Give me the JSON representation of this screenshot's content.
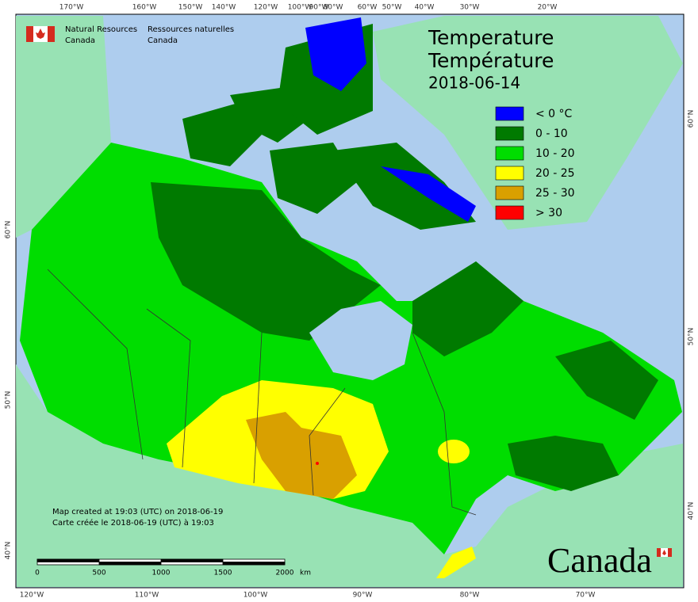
{
  "header": {
    "en_line1": "Natural Resources",
    "en_line2": "Canada",
    "fr_line1": "Ressources naturelles",
    "fr_line2": "Canada"
  },
  "title": {
    "en": "Temperature",
    "fr": "Température",
    "date": "2018-06-14"
  },
  "legend": [
    {
      "label": "< 0 °C",
      "color": "#0000ff"
    },
    {
      "label": "0 - 10",
      "color": "#007a00"
    },
    {
      "label": "10 - 20",
      "color": "#00dd00"
    },
    {
      "label": "20 - 25",
      "color": "#ffff00"
    },
    {
      "label": "25 - 30",
      "color": "#d9a000"
    },
    {
      "label": "> 30",
      "color": "#ff0000"
    }
  ],
  "graticule": {
    "top": [
      "170°W",
      "160°W",
      "150°W",
      "140°W",
      "120°W",
      "100°W",
      "90°W",
      "80°W",
      "60°W",
      "50°W",
      "40°W",
      "30°W",
      "20°W"
    ],
    "bottom": [
      "120°W",
      "110°W",
      "100°W",
      "90°W",
      "80°W",
      "70°W"
    ],
    "left": [
      "60°N",
      "50°N",
      "40°N"
    ],
    "right": [
      "60°N",
      "50°N",
      "40°N"
    ]
  },
  "notes": [
    "Map created at 19:03 (UTC) on 2018-06-19",
    "Carte créée le 2018-06-19 (UTC) à 19:03"
  ],
  "scale_bar": {
    "labels": [
      "0",
      "500",
      "1000",
      "1500",
      "2000"
    ],
    "unit": "km"
  },
  "wordmark": "Canada"
}
